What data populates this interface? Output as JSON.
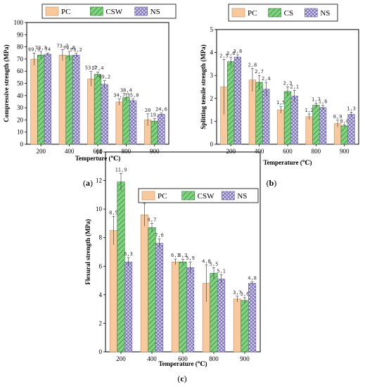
{
  "chart_data": [
    {
      "type": "bar",
      "panel": "(a)",
      "categories": [
        "200",
        "400",
        "600",
        "800",
        "900"
      ],
      "series": [
        {
          "name": "PC",
          "values": [
            69.9,
            73.2,
            53.7,
            34.7,
            20
          ],
          "errors": [
            5,
            4.5,
            6,
            2.5,
            5
          ]
        },
        {
          "name": "CSW",
          "values": [
            73.3,
            72.8,
            57.4,
            38.4,
            19
          ],
          "errors": [
            3,
            3.5,
            2,
            3,
            2
          ]
        },
        {
          "name": "NS",
          "values": [
            74,
            73.2,
            49.2,
            35.8,
            24.6
          ],
          "errors": [
            1,
            1.5,
            3,
            1.5,
            1
          ]
        }
      ],
      "data_labels": [
        [
          "69.9",
          "73.2",
          "53.7",
          "34.7",
          "20"
        ],
        [
          "73.3",
          "72.8",
          "57.4",
          "38.4",
          "19."
        ],
        [
          "74",
          "73.2",
          "49.2",
          "35.8",
          "24.6"
        ]
      ],
      "xlabel": "Temperture (℃)",
      "ylabel": "Compressive strength (MPa)",
      "ylim": [
        0,
        100
      ],
      "yticks": [
        "0",
        "10",
        "20",
        "30",
        "40",
        "50",
        "60",
        "70",
        "80",
        "90",
        "100"
      ],
      "caption": "a"
    },
    {
      "type": "bar",
      "panel": "(b)",
      "categories": [
        "200",
        "400",
        "600",
        "800",
        "900"
      ],
      "series": [
        {
          "name": "PC",
          "values": [
            2.5,
            2.8,
            1.5,
            1.2,
            0.9
          ],
          "errors": [
            1.2,
            0.5,
            0.15,
            0.12,
            0.15
          ]
        },
        {
          "name": "CS",
          "values": [
            3.6,
            2.7,
            2.3,
            1.7,
            0.8
          ],
          "errors": [
            0.2,
            0.3,
            0.2,
            0.1,
            0.05
          ]
        },
        {
          "name": "NS",
          "values": [
            3.8,
            2.4,
            2.1,
            1.6,
            1.3
          ],
          "errors": [
            0.1,
            0.3,
            0.25,
            0.1,
            0.1
          ]
        }
      ],
      "data_labels": [
        [
          "2.5",
          "2.8",
          "1.5",
          "1.2",
          "0.9"
        ],
        [
          "3.6",
          "2.7",
          "2.3",
          "1.7",
          "0.8"
        ],
        [
          "3.8",
          "2.4",
          "2.1",
          "1.6",
          "1.3"
        ]
      ],
      "xlabel": "Temperature (℃)",
      "ylabel": "Splitting tensile strength (MPa)",
      "ylim": [
        0,
        5
      ],
      "yticks": [
        "0",
        "1",
        "2",
        "3",
        "4",
        "5"
      ],
      "caption": "b"
    },
    {
      "type": "bar",
      "panel": "(c)",
      "categories": [
        "200",
        "400",
        "600",
        "800",
        "900"
      ],
      "series": [
        {
          "name": "PC",
          "values": [
            8.5,
            9.6,
            6.3,
            4.8,
            3.7
          ],
          "errors": [
            1.0,
            0.8,
            0.2,
            1.3,
            0.2
          ]
        },
        {
          "name": "CSW",
          "values": [
            11.9,
            8.7,
            6.3,
            5.5,
            3.6
          ],
          "errors": [
            0.6,
            0.3,
            0.2,
            0.4,
            0.2
          ]
        },
        {
          "name": "NS",
          "values": [
            6.3,
            7.6,
            5.9,
            5.1,
            4.8
          ],
          "errors": [
            0.3,
            0.3,
            0.4,
            0.3,
            0.1
          ]
        }
      ],
      "data_labels": [
        [
          "8.5",
          "9.6",
          "6.3",
          "4.8",
          "3.7"
        ],
        [
          "11.9",
          "8.7",
          "6.3",
          "5.5",
          "3.6"
        ],
        [
          "6.3",
          "7.6",
          "5.9",
          "5.1",
          "4.8"
        ]
      ],
      "xlabel": "Temperature (℃)",
      "ylabel": "Flexural strength (MPa)",
      "ylim": [
        0,
        14
      ],
      "yticks": [
        "0",
        "2",
        "4",
        "6",
        "8",
        "10",
        "12",
        "14"
      ],
      "caption": "c"
    }
  ],
  "colors": {
    "PC": "#f9c89c",
    "CSW": "#7fd37f",
    "NS": "#c5c0e0"
  }
}
